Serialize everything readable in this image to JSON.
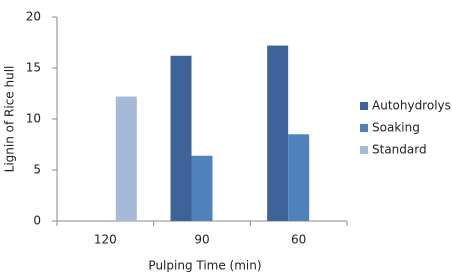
{
  "chart_data": {
    "type": "bar",
    "x_label": "Pulping Time (min)",
    "y_label": "Lignin of Rice hull",
    "categories": [
      "120",
      "90",
      "60"
    ],
    "series": [
      {
        "name": "Autohydrolysis",
        "color": "#3d6399",
        "values": [
          null,
          16.2,
          17.2
        ]
      },
      {
        "name": "Soaking",
        "color": "#4f81bd",
        "values": [
          null,
          6.4,
          8.5
        ]
      },
      {
        "name": "Standard",
        "color": "#a7b9d9",
        "values": [
          12.2,
          null,
          null
        ]
      }
    ],
    "ylim": [
      0,
      20
    ],
    "yticks": [
      0,
      5,
      10,
      15,
      20
    ],
    "grid": false,
    "legend": "right"
  }
}
